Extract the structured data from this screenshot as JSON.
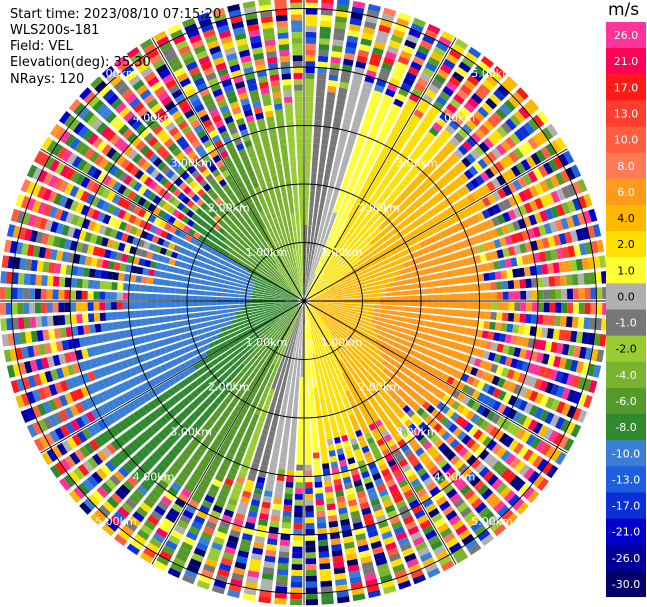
{
  "header": {
    "start_time": "Start time: 2023/08/10 07:15:20",
    "instrument": "WLS200s-181",
    "field": "Field: VEL",
    "elevation": "Elevation(deg): 35.30",
    "nrays": "NRays: 120"
  },
  "colorbar": {
    "unit": "m/s",
    "levels": [
      "26.0",
      "21.0",
      "17.0",
      "13.0",
      "10.0",
      "8.0",
      "6.0",
      "4.0",
      "2.0",
      "1.0",
      "0.0",
      "-1.0",
      "-2.0",
      "-4.0",
      "-6.0",
      "-8.0",
      "-10.0",
      "-13.0",
      "-17.0",
      "-21.0",
      "-26.0",
      "-30.0"
    ],
    "colors": [
      "#ff3399",
      "#ff0055",
      "#ff1a1a",
      "#ff3d2e",
      "#ff5c40",
      "#ff7a55",
      "#ff9a1a",
      "#ffb800",
      "#ffe000",
      "#ffff33",
      "#b0b0b0",
      "#777777",
      "#99cc33",
      "#7ab32e",
      "#55992a",
      "#2f8a2f",
      "#3a7fd5",
      "#1e5fe0",
      "#0a2fd6",
      "#0000cc",
      "#000099",
      "#000066"
    ]
  },
  "chart_data": {
    "type": "ppi",
    "field": "VEL",
    "units": "m/s",
    "nrays": 120,
    "elevation_deg": 35.3,
    "range_rings_km": [
      1.0,
      2.0,
      3.0,
      4.0,
      5.0
    ],
    "ring_labels": [
      "1.00km",
      "2.00km",
      "3.00km",
      "4.00km",
      "5.00km"
    ],
    "data_max_range_km": 5.2,
    "spokes_deg": [
      0,
      30,
      60,
      90,
      120,
      150,
      180,
      210,
      240,
      270,
      300,
      330
    ]
  }
}
